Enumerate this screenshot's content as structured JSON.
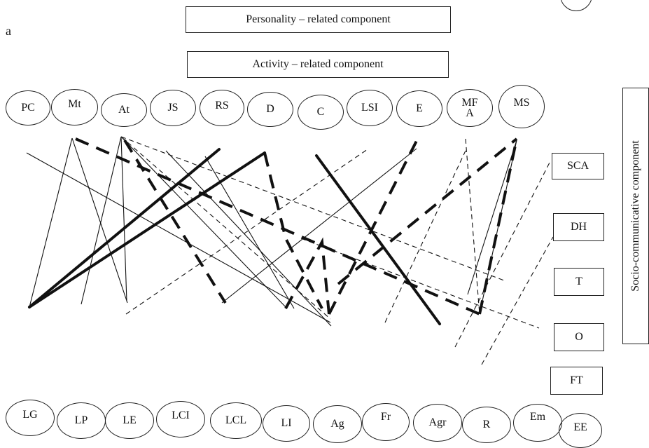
{
  "figure_label": "a",
  "components": {
    "personality": "Personality – related component",
    "activity": "Activity – related component",
    "socio": "Socio-communicative component"
  },
  "top_nodes": [
    "PC",
    "Mt",
    "At",
    "JS",
    "RS",
    "D",
    "C",
    "LSI",
    "E",
    "MF A",
    "MS"
  ],
  "right_nodes": [
    "SCA",
    "DH",
    "T",
    "O",
    "FT"
  ],
  "bottom_nodes": [
    "LG",
    "LP",
    "LE",
    "LCI",
    "LCL",
    "LI",
    "Ag",
    "Fr",
    "Agr",
    "R",
    "Em",
    "EE"
  ]
}
